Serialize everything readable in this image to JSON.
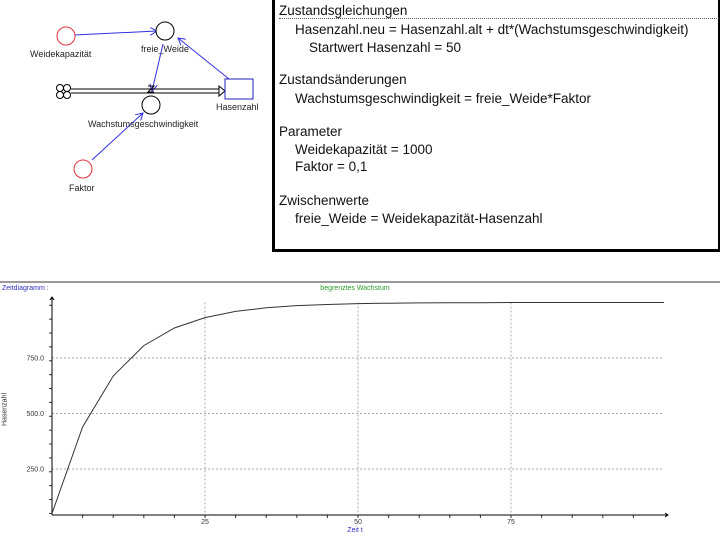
{
  "diagram": {
    "nodes": {
      "weidekapazitaet": "Weidekapazität",
      "freie_weide": "freie_Weide",
      "hasenzahl": "Hasenzahl",
      "wachstum": "Wachstumsgeschwindigkeit",
      "faktor": "Faktor"
    },
    "colors": {
      "parameter": "#e03040",
      "link": "#3030e0",
      "stock": "#2020c0"
    }
  },
  "equations": {
    "zustandsgleichungen": {
      "heading": "Zustandsgleichungen",
      "lines": [
        "Hasenzahl.neu = Hasenzahl.alt + dt*(Wachstumsgeschwindigkeit)"
      ],
      "start": "Startwert Hasenzahl = 50"
    },
    "zustandsaenderungen": {
      "heading": "Zustandsänderungen",
      "lines": [
        "Wachstumsgeschwindigkeit = freie_Weide*Faktor"
      ]
    },
    "parameter": {
      "heading": "Parameter",
      "lines": [
        "Weidekapazität = 1000",
        "Faktor = 0,1"
      ]
    },
    "zwischenwerte": {
      "heading": "Zwischenwerte",
      "lines": [
        "freie_Weide = Weidekapazität-Hasenzahl"
      ]
    }
  },
  "chart_data": {
    "type": "line",
    "panel_label": "Zeitdiagramm :",
    "title": "begrenztes Wachstum",
    "xlabel": "Zeit t",
    "ylabel": "Hasenzahl",
    "xlim": [
      0,
      100
    ],
    "ylim": [
      50,
      1000
    ],
    "xticks": [
      "25",
      "50",
      "75"
    ],
    "yticks": [
      "250.0",
      "500.0",
      "750.0"
    ],
    "grid": true,
    "colors": {
      "title": "#2a9a2a",
      "panel_label": "#3030c0",
      "xlabel": "#3030c0",
      "line": "#333333"
    },
    "x": [
      0,
      5,
      10,
      15,
      20,
      25,
      30,
      35,
      40,
      45,
      50,
      55,
      60,
      65,
      70,
      75,
      80,
      85,
      90,
      95,
      100
    ],
    "y": [
      50,
      439,
      669,
      806,
      885,
      932,
      960,
      976,
      986,
      991,
      995,
      997,
      998,
      999,
      999,
      1000,
      1000,
      1000,
      1000,
      1000,
      1000
    ]
  }
}
